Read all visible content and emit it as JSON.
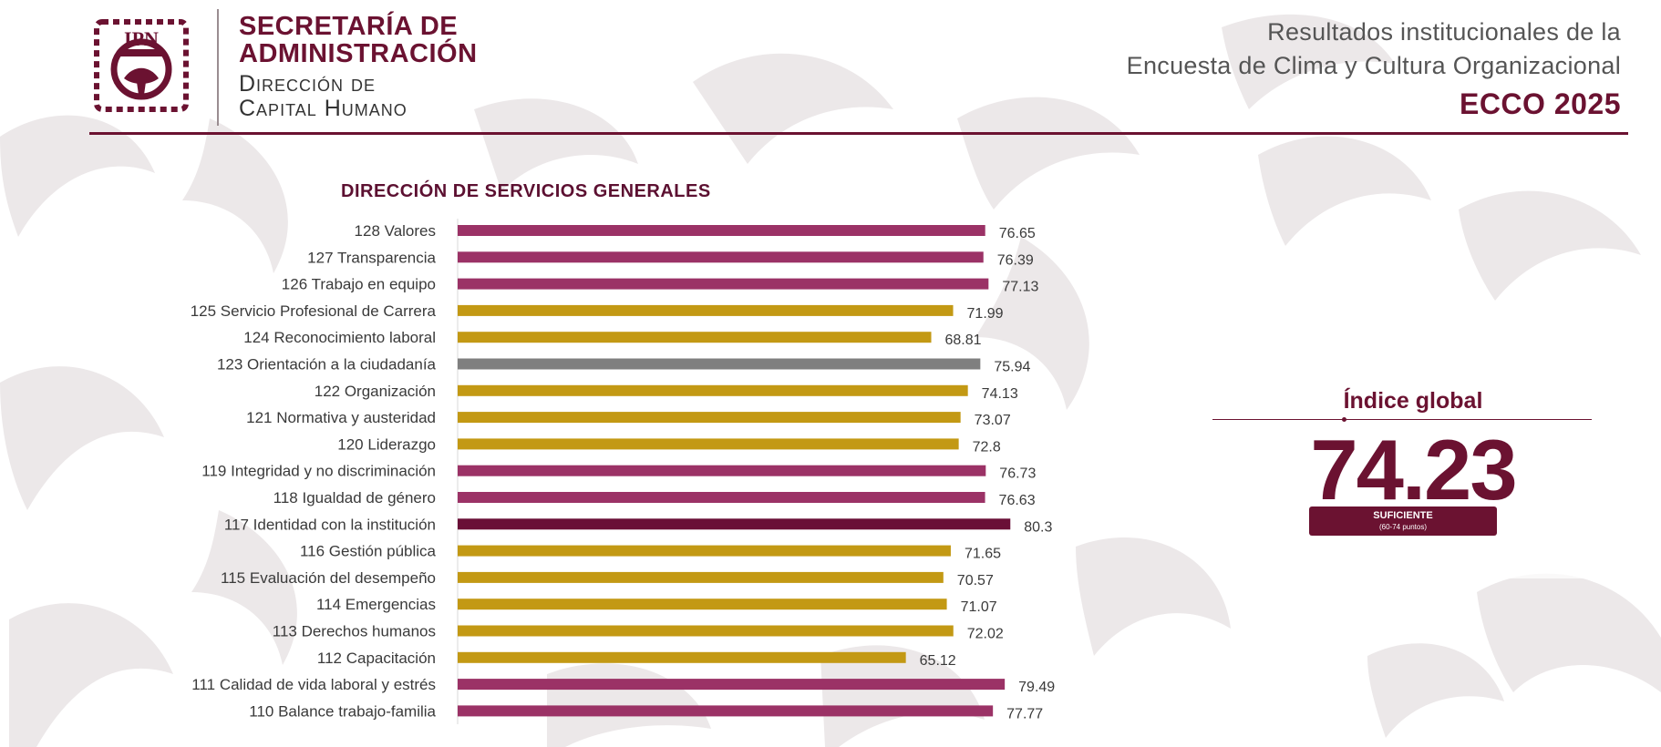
{
  "header": {
    "org_name_line1": "SECRETARÍA DE",
    "org_name_line2": "ADMINISTRACIÓN",
    "dept_line1": "Dirección de",
    "dept_line2": "Capital Humano",
    "logo_text": "IPN",
    "report_title_line1": "Resultados institucionales de la",
    "report_title_line2": "Encuesta de Clima y Cultura Organizacional",
    "report_code": "ECCO 2025"
  },
  "global_index": {
    "title": "Índice global",
    "value": "74.23",
    "status": "SUFICIENTE",
    "range": "(60-74 puntos)"
  },
  "colors": {
    "brand": "#6b1231",
    "bar_magenta": "#9b3266",
    "bar_gold": "#c39914",
    "bar_gray": "#7f7f7f",
    "bar_wine": "#6a0f37"
  },
  "chart_data": {
    "type": "bar",
    "orientation": "horizontal",
    "title": "DIRECCIÓN DE SERVICIOS GENERALES",
    "xlim": [
      0,
      100
    ],
    "grid": false,
    "categories": [
      "128 Valores",
      "127 Transparencia",
      "126 Trabajo en equipo",
      "125 Servicio Profesional de Carrera",
      "124 Reconocimiento laboral",
      "123 Orientación a la ciudadanía",
      "122 Organización",
      "121 Normativa y austeridad",
      "120 Liderazgo",
      "119 Integridad y no discriminación",
      "118 Igualdad de género",
      "117 Identidad con la institución",
      "116 Gestión pública",
      "115 Evaluación del desempeño",
      "114 Emergencias",
      "113 Derechos humanos",
      "112 Capacitación",
      "111 Calidad de vida laboral y estrés",
      "110 Balance trabajo-familia"
    ],
    "values": [
      76.65,
      76.39,
      77.13,
      71.99,
      68.81,
      75.94,
      74.13,
      73.07,
      72.8,
      76.73,
      76.63,
      80.3,
      71.65,
      70.57,
      71.07,
      72.02,
      65.12,
      79.49,
      77.77
    ],
    "value_labels": [
      "76.65",
      "76.39",
      "77.13",
      "71.99",
      "68.81",
      "75.94",
      "74.13",
      "73.07",
      "72.8",
      "76.73",
      "76.63",
      "80.3",
      "71.65",
      "70.57",
      "71.07",
      "72.02",
      "65.12",
      "79.49",
      "77.77"
    ],
    "bar_colors": [
      "#9b3266",
      "#9b3266",
      "#9b3266",
      "#c39914",
      "#c39914",
      "#7f7f7f",
      "#c39914",
      "#c39914",
      "#c39914",
      "#9b3266",
      "#9b3266",
      "#6a0f37",
      "#c39914",
      "#c39914",
      "#c39914",
      "#c39914",
      "#c39914",
      "#9b3266",
      "#9b3266"
    ]
  }
}
